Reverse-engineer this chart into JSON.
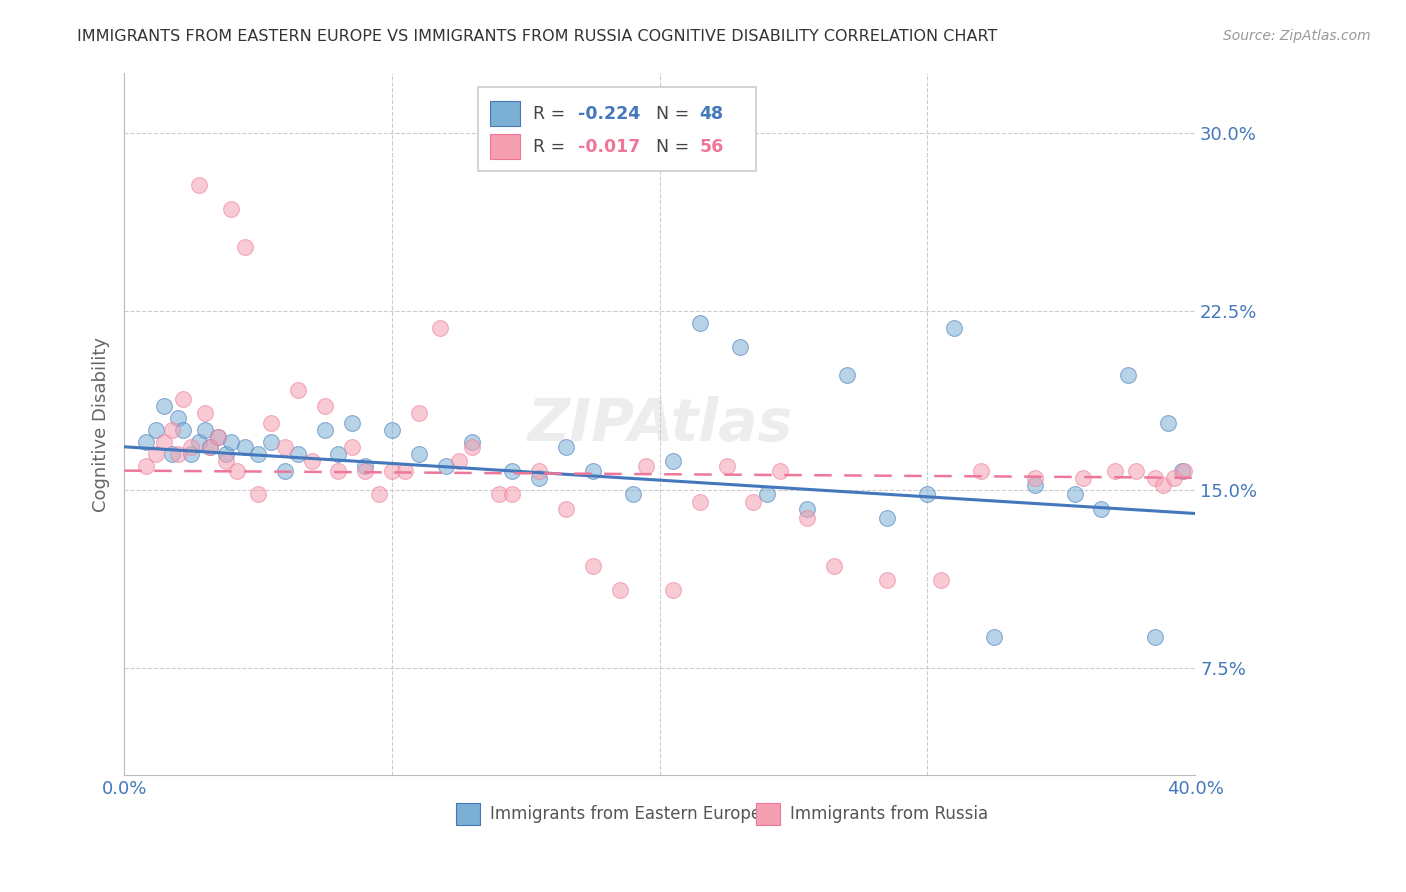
{
  "title": "IMMIGRANTS FROM EASTERN EUROPE VS IMMIGRANTS FROM RUSSIA COGNITIVE DISABILITY CORRELATION CHART",
  "source": "Source: ZipAtlas.com",
  "ylabel": "Cognitive Disability",
  "yticks": [
    0.075,
    0.15,
    0.225,
    0.3
  ],
  "ytick_labels": [
    "7.5%",
    "15.0%",
    "22.5%",
    "30.0%"
  ],
  "xlim": [
    0.0,
    0.4
  ],
  "ylim": [
    0.03,
    0.325
  ],
  "legend_r1": "-0.224",
  "legend_n1": "48",
  "legend_r2": "-0.017",
  "legend_n2": "56",
  "color_blue": "#7BAFD4",
  "color_pink": "#F4A0B0",
  "color_blue_line": "#4477BB",
  "color_pink_line": "#EE7799",
  "color_axis_labels": "#4477BB",
  "color_grid": "#CCCCCC",
  "color_title": "#333333",
  "blue_x": [
    0.008,
    0.012,
    0.015,
    0.018,
    0.02,
    0.022,
    0.025,
    0.028,
    0.03,
    0.032,
    0.035,
    0.038,
    0.04,
    0.045,
    0.05,
    0.055,
    0.06,
    0.065,
    0.075,
    0.08,
    0.085,
    0.09,
    0.1,
    0.11,
    0.12,
    0.13,
    0.145,
    0.155,
    0.165,
    0.175,
    0.19,
    0.205,
    0.215,
    0.23,
    0.24,
    0.255,
    0.27,
    0.285,
    0.3,
    0.31,
    0.325,
    0.34,
    0.355,
    0.365,
    0.375,
    0.385,
    0.39,
    0.395
  ],
  "blue_y": [
    0.17,
    0.175,
    0.185,
    0.165,
    0.18,
    0.175,
    0.165,
    0.17,
    0.175,
    0.168,
    0.172,
    0.165,
    0.17,
    0.168,
    0.165,
    0.17,
    0.158,
    0.165,
    0.175,
    0.165,
    0.178,
    0.16,
    0.175,
    0.165,
    0.16,
    0.17,
    0.158,
    0.155,
    0.168,
    0.158,
    0.148,
    0.162,
    0.22,
    0.21,
    0.148,
    0.142,
    0.198,
    0.138,
    0.148,
    0.218,
    0.088,
    0.152,
    0.148,
    0.142,
    0.198,
    0.088,
    0.178,
    0.158
  ],
  "pink_x": [
    0.008,
    0.012,
    0.015,
    0.018,
    0.02,
    0.022,
    0.025,
    0.028,
    0.03,
    0.032,
    0.035,
    0.038,
    0.04,
    0.042,
    0.045,
    0.05,
    0.055,
    0.06,
    0.065,
    0.07,
    0.075,
    0.08,
    0.085,
    0.09,
    0.095,
    0.1,
    0.105,
    0.11,
    0.118,
    0.125,
    0.13,
    0.14,
    0.145,
    0.155,
    0.165,
    0.175,
    0.185,
    0.195,
    0.205,
    0.215,
    0.225,
    0.235,
    0.245,
    0.255,
    0.265,
    0.285,
    0.305,
    0.32,
    0.34,
    0.358,
    0.37,
    0.378,
    0.385,
    0.388,
    0.392,
    0.396
  ],
  "pink_y": [
    0.16,
    0.165,
    0.17,
    0.175,
    0.165,
    0.188,
    0.168,
    0.278,
    0.182,
    0.168,
    0.172,
    0.162,
    0.268,
    0.158,
    0.252,
    0.148,
    0.178,
    0.168,
    0.192,
    0.162,
    0.185,
    0.158,
    0.168,
    0.158,
    0.148,
    0.158,
    0.158,
    0.182,
    0.218,
    0.162,
    0.168,
    0.148,
    0.148,
    0.158,
    0.142,
    0.118,
    0.108,
    0.16,
    0.108,
    0.145,
    0.16,
    0.145,
    0.158,
    0.138,
    0.118,
    0.112,
    0.112,
    0.158,
    0.155,
    0.155,
    0.158,
    0.158,
    0.155,
    0.152,
    0.155,
    0.158
  ],
  "marker_size": 130,
  "alpha": 0.55
}
